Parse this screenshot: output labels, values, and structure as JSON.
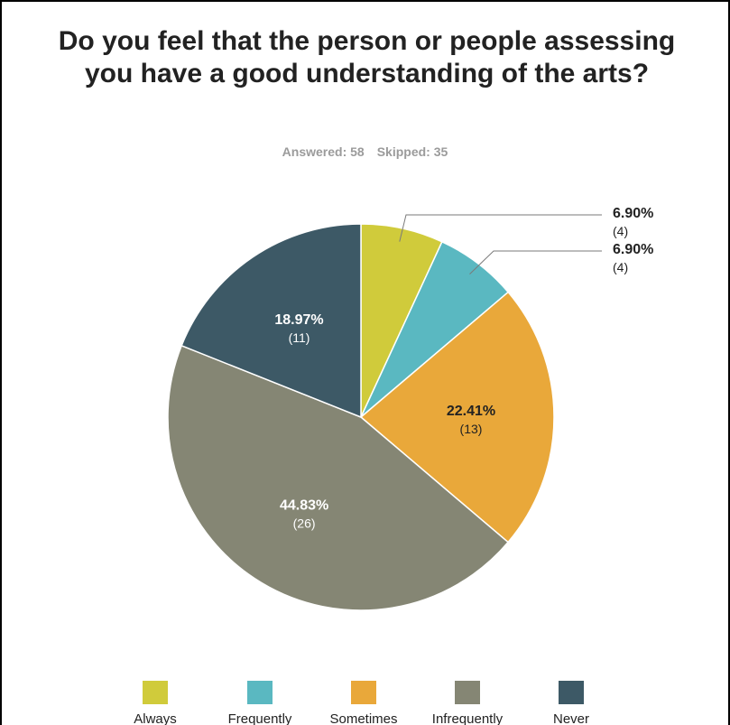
{
  "header": {
    "title": "Do you feel that the person or people assessing you have a good understanding of the arts?",
    "answered": "Answered: 58",
    "skipped": "Skipped: 35"
  },
  "chart_data": {
    "type": "pie",
    "categories": [
      "Always",
      "Frequently",
      "Sometimes",
      "Infrequently",
      "Never"
    ],
    "values": [
      6.9,
      6.9,
      22.41,
      44.83,
      18.97
    ],
    "counts": [
      4,
      4,
      13,
      26,
      11
    ],
    "value_labels": [
      "6.90%",
      "6.90%",
      "22.41%",
      "44.83%",
      "18.97%"
    ],
    "count_labels": [
      "(4)",
      "(4)",
      "(13)",
      "(26)",
      "(11)"
    ],
    "colors": [
      "#d0cb3b",
      "#5ab8c1",
      "#e9a83a",
      "#858674",
      "#3d5966"
    ],
    "label_colors": [
      "#222222",
      "#222222",
      "#222222",
      "#ffffff",
      "#ffffff"
    ],
    "legend_placement": "bottom"
  }
}
